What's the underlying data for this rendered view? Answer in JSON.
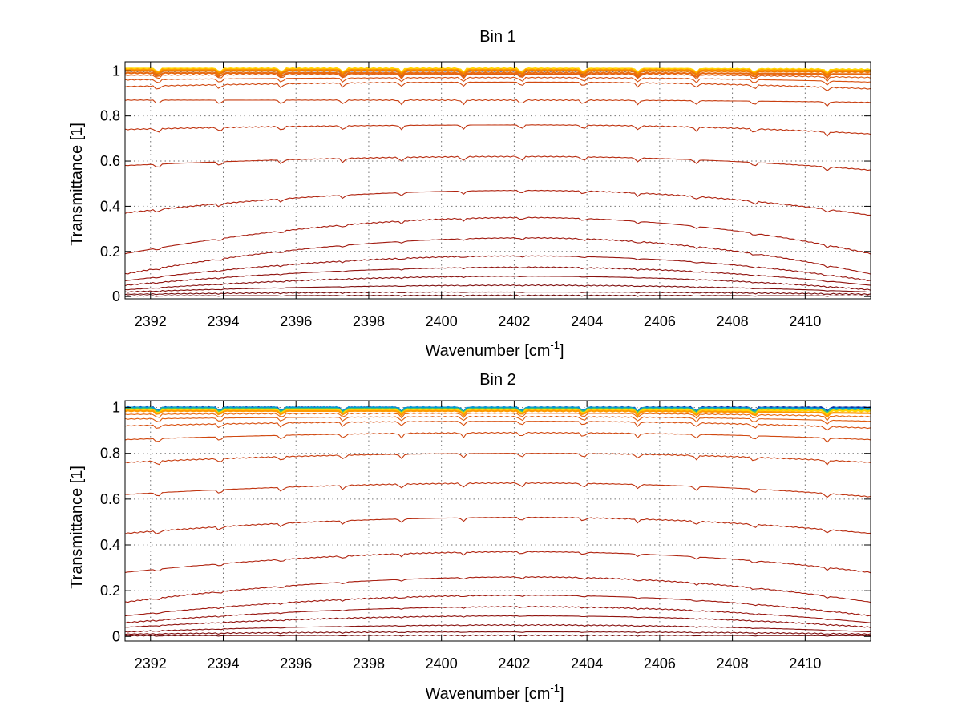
{
  "chart_data": [
    {
      "type": "line",
      "title": "Bin 1",
      "xlabel": "Wavenumber [cm",
      "xlabel_sup": "-1",
      "xlabel_suffix": "]",
      "ylabel": "Transmittance [1]",
      "xlim": [
        2391.3,
        2411.8
      ],
      "ylim": [
        -0.01,
        1.04
      ],
      "xticks": [
        2392,
        2394,
        2396,
        2398,
        2400,
        2402,
        2404,
        2406,
        2408,
        2410
      ],
      "xtick_labels": [
        "2392",
        "2394",
        "2396",
        "2398",
        "2400",
        "2402",
        "2404",
        "2406",
        "2408",
        "2410"
      ],
      "yticks": [
        0,
        0.2,
        0.4,
        0.6,
        0.8,
        1
      ],
      "ytick_labels": [
        "0",
        "0.2",
        "0.4",
        "0.6",
        "0.8",
        "1"
      ],
      "grid": true,
      "legend": "none",
      "series_profiles": [
        {
          "left": 1.0,
          "center": 1.0,
          "right": 1.0,
          "color": "#0a2fa3"
        },
        {
          "left": 1.01,
          "center": 1.01,
          "right": 1.005,
          "color": "#ffd400"
        },
        {
          "left": 1.005,
          "center": 1.005,
          "right": 1.0,
          "color": "#ff9a00"
        },
        {
          "left": 1.0,
          "center": 1.0,
          "right": 0.995,
          "color": "#f07c00"
        },
        {
          "left": 0.99,
          "center": 0.99,
          "right": 0.985,
          "color": "#e86a10"
        },
        {
          "left": 0.98,
          "center": 0.985,
          "right": 0.97,
          "color": "#e05c10"
        },
        {
          "left": 0.96,
          "center": 0.97,
          "right": 0.95,
          "color": "#d85010"
        },
        {
          "left": 0.93,
          "center": 0.95,
          "right": 0.92,
          "color": "#d04810"
        },
        {
          "left": 0.87,
          "center": 0.87,
          "right": 0.86,
          "color": "#c83e10"
        },
        {
          "left": 0.74,
          "center": 0.76,
          "right": 0.72,
          "color": "#c03410"
        },
        {
          "left": 0.58,
          "center": 0.62,
          "right": 0.56,
          "color": "#b82c10"
        },
        {
          "left": 0.37,
          "center": 0.47,
          "right": 0.36,
          "color": "#b02410"
        },
        {
          "left": 0.19,
          "center": 0.35,
          "right": 0.19,
          "color": "#a81e10"
        },
        {
          "left": 0.1,
          "center": 0.26,
          "right": 0.1,
          "color": "#a01a10"
        },
        {
          "left": 0.07,
          "center": 0.18,
          "right": 0.07,
          "color": "#981610"
        },
        {
          "left": 0.05,
          "center": 0.13,
          "right": 0.05,
          "color": "#901410"
        },
        {
          "left": 0.03,
          "center": 0.09,
          "right": 0.03,
          "color": "#881210"
        },
        {
          "left": 0.02,
          "center": 0.05,
          "right": 0.02,
          "color": "#801010"
        },
        {
          "left": 0.01,
          "center": 0.02,
          "right": 0.01,
          "color": "#780e0e"
        },
        {
          "left": 0.003,
          "center": 0.005,
          "right": 0.003,
          "color": "#700c0c"
        }
      ]
    },
    {
      "type": "line",
      "title": "Bin 2",
      "xlabel": "Wavenumber [cm",
      "xlabel_sup": "-1",
      "xlabel_suffix": "]",
      "ylabel": "Transmittance [1]",
      "xlim": [
        2391.3,
        2411.8
      ],
      "ylim": [
        -0.02,
        1.03
      ],
      "xticks": [
        2392,
        2394,
        2396,
        2398,
        2400,
        2402,
        2404,
        2406,
        2408,
        2410
      ],
      "xtick_labels": [
        "2392",
        "2394",
        "2396",
        "2398",
        "2400",
        "2402",
        "2404",
        "2406",
        "2408",
        "2410"
      ],
      "yticks": [
        0,
        0.2,
        0.4,
        0.6,
        0.8,
        1
      ],
      "ytick_labels": [
        "0",
        "0.2",
        "0.4",
        "0.6",
        "0.8",
        "1"
      ],
      "grid": true,
      "legend": "none",
      "series_profiles": [
        {
          "left": 1.0,
          "center": 1.0,
          "right": 1.0,
          "color": "#0a2fa3"
        },
        {
          "left": 1.0,
          "center": 1.0,
          "right": 0.995,
          "color": "#0096d6"
        },
        {
          "left": 0.995,
          "center": 0.995,
          "right": 0.99,
          "color": "#48c36a"
        },
        {
          "left": 0.99,
          "center": 0.99,
          "right": 0.985,
          "color": "#ffd400"
        },
        {
          "left": 0.985,
          "center": 0.985,
          "right": 0.975,
          "color": "#ff9a00"
        },
        {
          "left": 0.97,
          "center": 0.975,
          "right": 0.96,
          "color": "#e86a10"
        },
        {
          "left": 0.95,
          "center": 0.96,
          "right": 0.94,
          "color": "#e05c10"
        },
        {
          "left": 0.92,
          "center": 0.94,
          "right": 0.91,
          "color": "#d85010"
        },
        {
          "left": 0.86,
          "center": 0.89,
          "right": 0.86,
          "color": "#d04810"
        },
        {
          "left": 0.76,
          "center": 0.8,
          "right": 0.76,
          "color": "#c83e10"
        },
        {
          "left": 0.62,
          "center": 0.67,
          "right": 0.61,
          "color": "#c03410"
        },
        {
          "left": 0.45,
          "center": 0.52,
          "right": 0.45,
          "color": "#b82c10"
        },
        {
          "left": 0.28,
          "center": 0.37,
          "right": 0.28,
          "color": "#b02410"
        },
        {
          "left": 0.15,
          "center": 0.26,
          "right": 0.15,
          "color": "#a81e10"
        },
        {
          "left": 0.09,
          "center": 0.18,
          "right": 0.09,
          "color": "#a01a10"
        },
        {
          "left": 0.06,
          "center": 0.13,
          "right": 0.06,
          "color": "#981610"
        },
        {
          "left": 0.04,
          "center": 0.09,
          "right": 0.04,
          "color": "#901410"
        },
        {
          "left": 0.02,
          "center": 0.05,
          "right": 0.02,
          "color": "#881210"
        },
        {
          "left": 0.01,
          "center": 0.02,
          "right": 0.01,
          "color": "#801010"
        },
        {
          "left": 0.003,
          "center": 0.005,
          "right": 0.003,
          "color": "#700c0c"
        }
      ]
    }
  ]
}
